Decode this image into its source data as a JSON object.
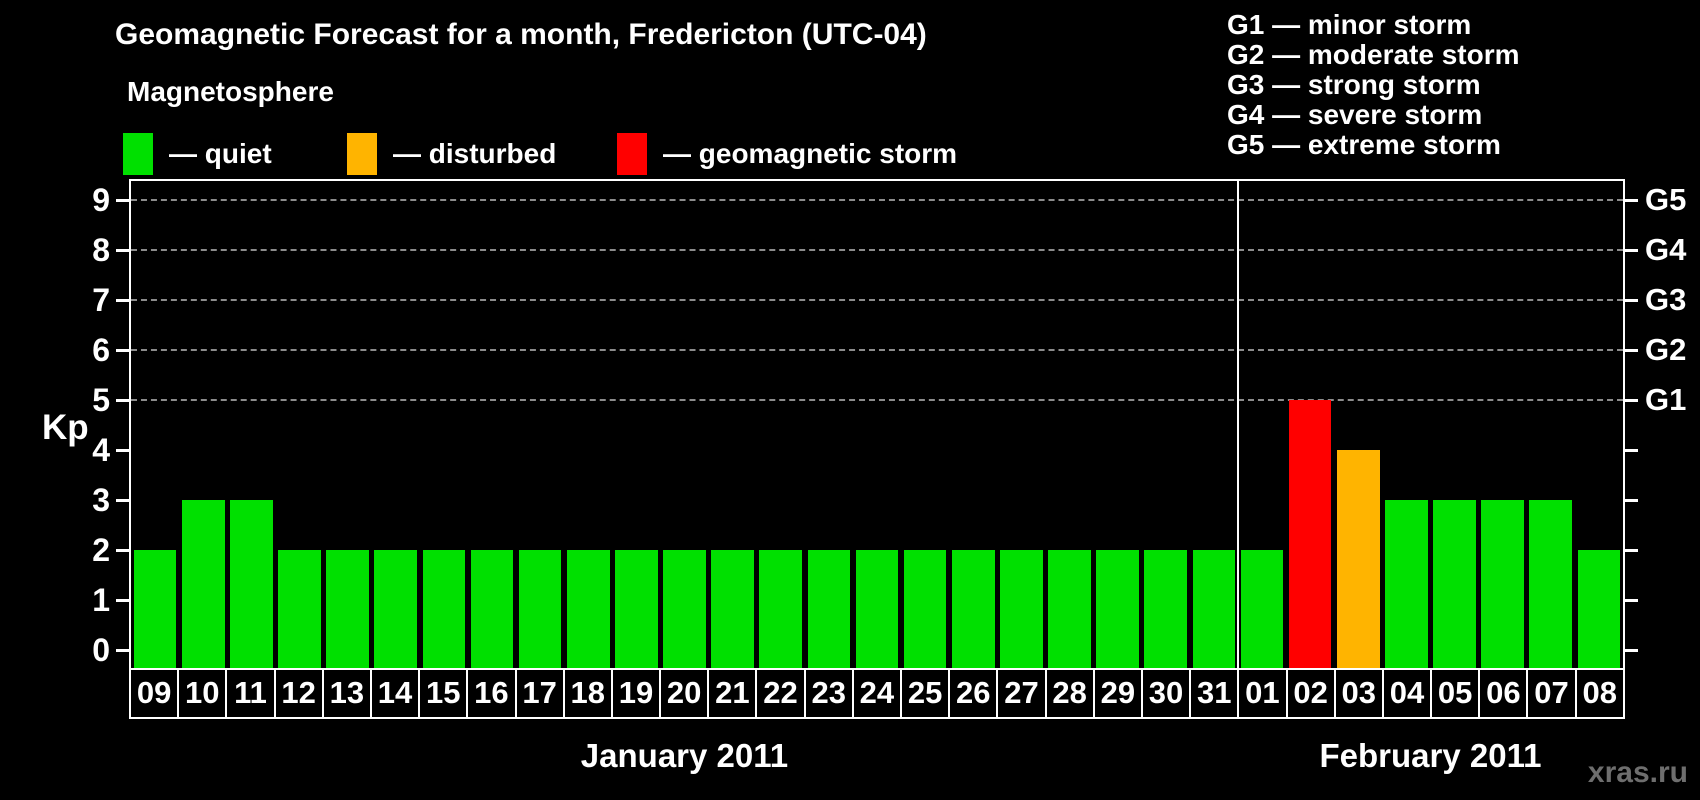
{
  "header": {
    "title": "Geomagnetic Forecast for a month, Fredericton (UTC-04)",
    "legend_title": "Magnetosphere",
    "legend": [
      {
        "name": "quiet",
        "label": "— quiet",
        "color": "#00e000"
      },
      {
        "name": "disturbed",
        "label": "— disturbed",
        "color": "#ffb400"
      },
      {
        "name": "storm",
        "label": "— geomagnetic storm",
        "color": "#ff0000"
      }
    ],
    "g_scale": [
      {
        "code": "G1",
        "label": "G1 — minor storm"
      },
      {
        "code": "G2",
        "label": "G2 — moderate storm"
      },
      {
        "code": "G3",
        "label": "G3 — strong storm"
      },
      {
        "code": "G4",
        "label": "G4 — severe storm"
      },
      {
        "code": "G5",
        "label": "G5 — extreme storm"
      }
    ]
  },
  "chart_data": {
    "type": "bar",
    "title": "Geomagnetic Forecast for a month, Fredericton (UTC-04)",
    "ylabel": "Kp",
    "ylim": [
      0,
      9
    ],
    "yticks": [
      0,
      1,
      2,
      3,
      4,
      5,
      6,
      7,
      8,
      9
    ],
    "gridlines_at_kp": [
      5,
      6,
      7,
      8,
      9
    ],
    "right_axis": [
      {
        "kp": 5,
        "label": "G1"
      },
      {
        "kp": 6,
        "label": "G2"
      },
      {
        "kp": 7,
        "label": "G3"
      },
      {
        "kp": 8,
        "label": "G4"
      },
      {
        "kp": 9,
        "label": "G5"
      }
    ],
    "color_rule": {
      "quiet_max_kp": 3,
      "disturbed_kp": 4,
      "storm_min_kp": 5
    },
    "months": [
      {
        "label": "January 2011",
        "days": [
          "09",
          "10",
          "11",
          "12",
          "13",
          "14",
          "15",
          "16",
          "17",
          "18",
          "19",
          "20",
          "21",
          "22",
          "23",
          "24",
          "25",
          "26",
          "27",
          "28",
          "29",
          "30",
          "31"
        ],
        "values": [
          2,
          3,
          3,
          2,
          2,
          2,
          2,
          2,
          2,
          2,
          2,
          2,
          2,
          2,
          2,
          2,
          2,
          2,
          2,
          2,
          2,
          2,
          2
        ]
      },
      {
        "label": "February 2011",
        "days": [
          "01",
          "02",
          "03",
          "04",
          "05",
          "06",
          "07",
          "08"
        ],
        "values": [
          2,
          5,
          4,
          3,
          3,
          3,
          3,
          2
        ]
      }
    ]
  },
  "watermark": "xras.ru",
  "colors": {
    "quiet": "#00e000",
    "disturbed": "#ffb400",
    "storm": "#ff0000",
    "grid": "#8c8c8c",
    "axis": "#ffffff",
    "watermark": "#6e6e6e",
    "background": "#000000"
  }
}
